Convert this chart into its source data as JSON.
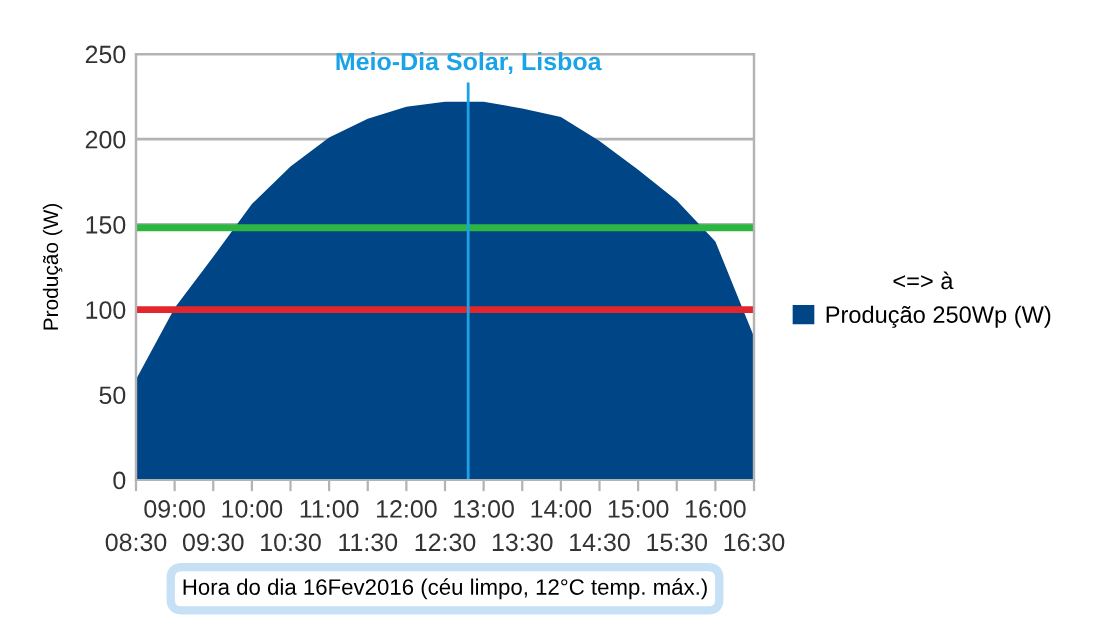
{
  "chart_data": {
    "type": "area",
    "ylabel": "Produção (W)",
    "xlabel": "Hora do dia 16Fev2016 (céu limpo, 12°C temp. máx.)",
    "legend_title": "<=> à",
    "legend": "right",
    "grid": "y",
    "x": [
      8.5,
      9,
      9.5,
      10,
      10.5,
      11,
      11.5,
      12,
      12.5,
      13,
      13.5,
      14,
      14.5,
      15,
      15.5,
      16,
      16.5
    ],
    "series": [
      {
        "name": "Produção 250Wp (W)",
        "color": "#004586",
        "values": [
          59,
          101,
          131,
          162,
          184,
          201,
          212,
          219,
          222,
          222,
          218,
          213,
          199,
          182,
          164,
          140,
          84
        ]
      }
    ],
    "xlim": [
      8.5,
      16.5
    ],
    "xticks": [
      {
        "value": 8.5,
        "label": "08:30"
      },
      {
        "value": 9.5,
        "label": "09:30"
      },
      {
        "value": 10.5,
        "label": "10:30"
      },
      {
        "value": 11.5,
        "label": "11:30"
      },
      {
        "value": 12.5,
        "label": "12:30"
      },
      {
        "value": 13.5,
        "label": "13:30"
      },
      {
        "value": 14.5,
        "label": "14:30"
      },
      {
        "value": 15.5,
        "label": "15:30"
      },
      {
        "value": 16.5,
        "label": "16:30"
      }
    ],
    "x2lim": [
      8.5,
      16.5
    ],
    "x2ticks": [
      {
        "value": 9,
        "label": "09:00"
      },
      {
        "value": 10,
        "label": "10:00"
      },
      {
        "value": 11,
        "label": "11:00"
      },
      {
        "value": 12,
        "label": "12:00"
      },
      {
        "value": 13,
        "label": "13:00"
      },
      {
        "value": 14,
        "label": "14:00"
      },
      {
        "value": 15,
        "label": "15:00"
      },
      {
        "value": 16,
        "label": "16:00"
      }
    ],
    "ylim": [
      0,
      250
    ],
    "yticks": [
      0,
      50,
      100,
      150,
      200,
      250
    ],
    "ref_lines": [
      {
        "axis": "y",
        "value": 148,
        "color": "#2db742"
      },
      {
        "axis": "y",
        "value": 100,
        "color": "#e3262b"
      },
      {
        "axis": "x",
        "value": 12.8,
        "label": "Meio-Dia Solar, Lisboa",
        "color": "#1aa3e8"
      }
    ]
  }
}
